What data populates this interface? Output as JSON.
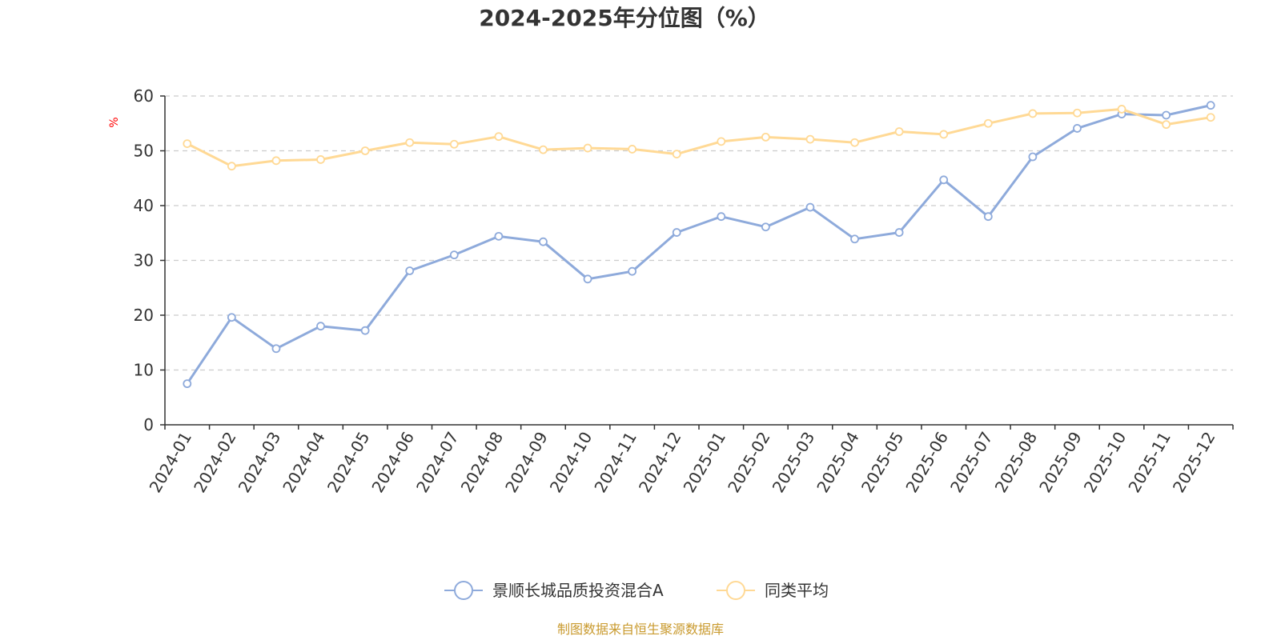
{
  "chart_data": {
    "type": "line",
    "title": "2024-2025年分位图（%）",
    "ylabel": "%",
    "xlabel": "",
    "ylim": [
      0,
      60
    ],
    "yticks": [
      0,
      10,
      20,
      30,
      40,
      50,
      60
    ],
    "grid": true,
    "categories": [
      "2024-01",
      "2024-02",
      "2024-03",
      "2024-04",
      "2024-05",
      "2024-06",
      "2024-07",
      "2024-08",
      "2024-09",
      "2024-10",
      "2024-11",
      "2024-12",
      "2025-01",
      "2025-02",
      "2025-03",
      "2025-04",
      "2025-05",
      "2025-06",
      "2025-07",
      "2025-08",
      "2025-09",
      "2025-10",
      "2025-11",
      "2025-12"
    ],
    "series": [
      {
        "name": "景顺长城品质投资混合A",
        "color": "#8eaadb",
        "values": [
          7.5,
          19.6,
          13.9,
          18.0,
          17.2,
          28.1,
          31.0,
          34.4,
          33.4,
          26.6,
          28.0,
          35.1,
          38.0,
          36.1,
          39.7,
          33.9,
          35.1,
          44.7,
          38.0,
          48.9,
          54.1,
          56.7,
          56.5,
          58.3
        ]
      },
      {
        "name": "同类平均",
        "color": "#ffd995",
        "values": [
          51.3,
          47.2,
          48.2,
          48.4,
          50.0,
          51.5,
          51.2,
          52.6,
          50.2,
          50.5,
          50.3,
          49.4,
          51.7,
          52.5,
          52.1,
          51.5,
          53.5,
          53.0,
          55.0,
          56.8,
          56.9,
          57.6,
          54.8,
          56.1
        ]
      }
    ],
    "legend_position": "bottom-center"
  },
  "source_note": "制图数据来自恒生聚源数据库"
}
